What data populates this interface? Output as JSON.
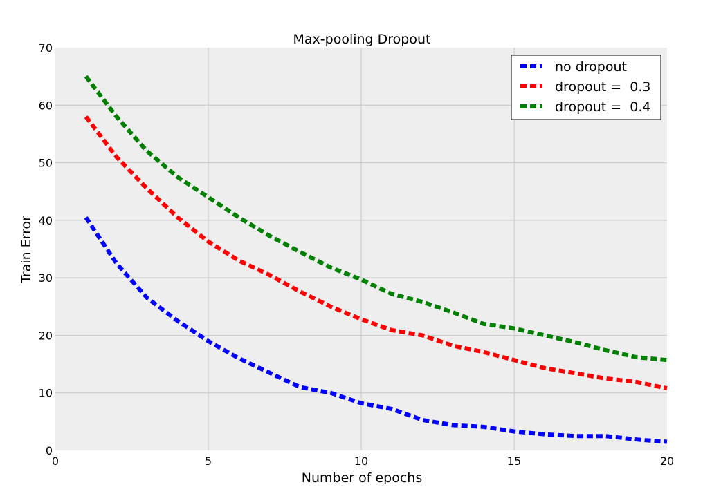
{
  "chart_data": {
    "type": "line",
    "title": "Max-pooling Dropout",
    "xlabel": "Number of epochs",
    "ylabel": "Train Error",
    "xlim": [
      0,
      20
    ],
    "ylim": [
      0,
      70
    ],
    "xticks": [
      0,
      5,
      10,
      15,
      20
    ],
    "yticks": [
      0,
      10,
      20,
      30,
      40,
      50,
      60,
      70
    ],
    "grid": true,
    "legend_position": "top-right",
    "x": [
      1,
      2,
      3,
      4,
      5,
      6,
      7,
      8,
      9,
      10,
      11,
      12,
      13,
      14,
      15,
      16,
      17,
      18,
      19,
      20
    ],
    "series": [
      {
        "name": "no dropout",
        "color": "#0000ff",
        "values": [
          40.5,
          32.5,
          26.5,
          22.5,
          19,
          16,
          13.5,
          11,
          10,
          8.2,
          7.2,
          5.3,
          4.4,
          4.1,
          3.3,
          2.8,
          2.5,
          2.5,
          1.9,
          1.5
        ]
      },
      {
        "name": "dropout =  0.3",
        "color": "#ff0000",
        "values": [
          58,
          51,
          45.5,
          40.5,
          36.3,
          33,
          30.5,
          27.6,
          25,
          22.8,
          20.9,
          20,
          18.2,
          17.1,
          15.7,
          14.3,
          13.4,
          12.5,
          11.9,
          10.8
        ]
      },
      {
        "name": "dropout =  0.4",
        "color": "#008000",
        "values": [
          65,
          58,
          52,
          47.5,
          44,
          40.5,
          37.3,
          34.5,
          31.8,
          29.7,
          27.2,
          25.8,
          24,
          22,
          21.2,
          20,
          18.8,
          17.4,
          16.2,
          15.7
        ]
      }
    ]
  }
}
